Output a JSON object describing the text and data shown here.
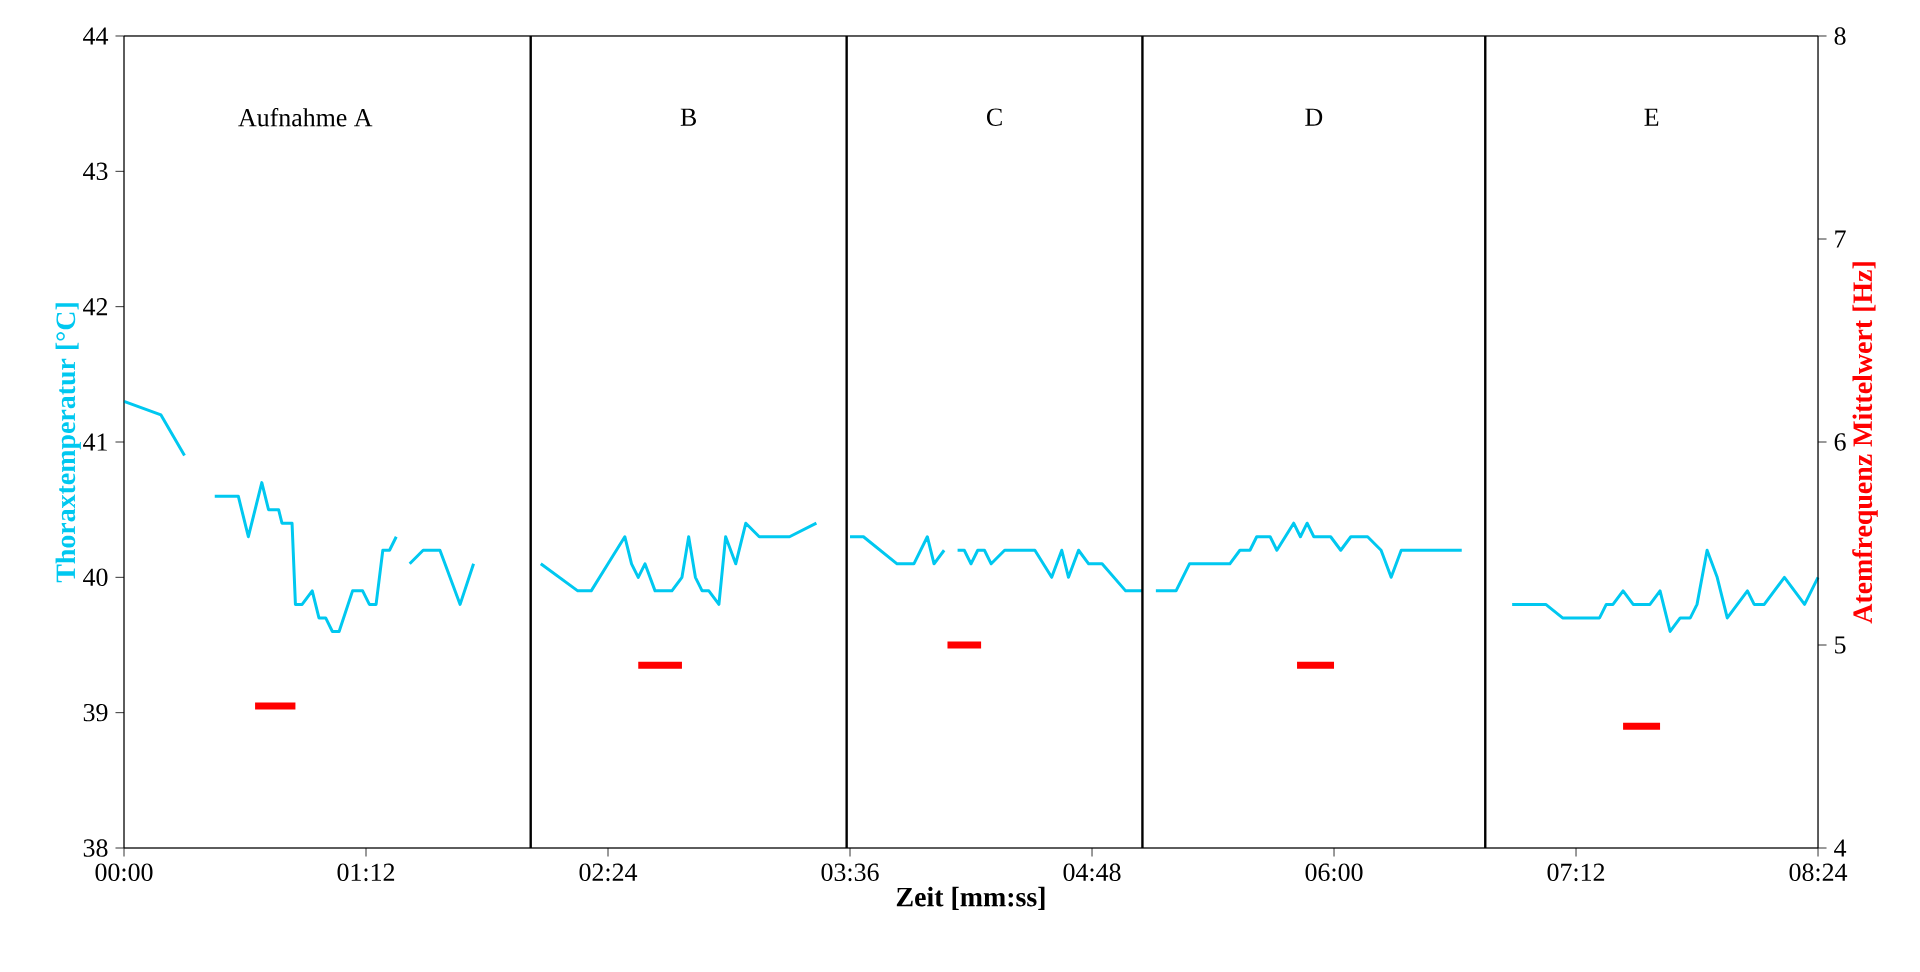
{
  "chart_data": {
    "type": "line",
    "xlabel": "Zeit [mm:ss]",
    "ylabel": "Thoraxtemperatur [°C]",
    "y2label": "Atemfrequenz Mittelwert [Hz]",
    "xlim": [
      0,
      504
    ],
    "xticks": [
      {
        "value": 0,
        "label": "00:00"
      },
      {
        "value": 72,
        "label": "01:12"
      },
      {
        "value": 144,
        "label": "02:24"
      },
      {
        "value": 216,
        "label": "03:36"
      },
      {
        "value": 288,
        "label": "04:48"
      },
      {
        "value": 360,
        "label": "06:00"
      },
      {
        "value": 432,
        "label": "07:12"
      },
      {
        "value": 504,
        "label": "08:24"
      }
    ],
    "ylim": [
      38,
      44
    ],
    "yticks": [
      38,
      39,
      40,
      41,
      42,
      43,
      44
    ],
    "y2lim": [
      4,
      8
    ],
    "y2ticks": [
      4,
      5,
      6,
      7,
      8
    ],
    "marker": "none",
    "line_style": "solid",
    "grid": false,
    "series": [
      {
        "color": "#00c8f0",
        "x": [
          0,
          11,
          18,
          19,
          27,
          34,
          37,
          41,
          43,
          46,
          47,
          50,
          51,
          53,
          56,
          58,
          60,
          62,
          64,
          68,
          71,
          73,
          75,
          77,
          79,
          81,
          82,
          85,
          89,
          94,
          100,
          104,
          110,
          124,
          135,
          139,
          144,
          149,
          151,
          153,
          155,
          158,
          163,
          166,
          168,
          170,
          172,
          174,
          177,
          179,
          182,
          185,
          189,
          198,
          206,
          210,
          216,
          220,
          230,
          235,
          239,
          241,
          244,
          246,
          248,
          250,
          252,
          254,
          256,
          258,
          262,
          271,
          276,
          279,
          281,
          284,
          287,
          291,
          298,
          303,
          305,
          307,
          313,
          317,
          329,
          332,
          335,
          337,
          341,
          343,
          348,
          350,
          352,
          354,
          359,
          362,
          365,
          370,
          374,
          377,
          380,
          398,
          405,
          413,
          423,
          428,
          439,
          441,
          443,
          446,
          449,
          454,
          457,
          460,
          463,
          466,
          468,
          471,
          474,
          477,
          483,
          485,
          488,
          494,
          500,
          504
        ],
        "values": [
          41.3,
          41.2,
          40.9,
          null,
          40.6,
          40.6,
          40.3,
          40.7,
          40.5,
          40.5,
          40.4,
          40.4,
          39.8,
          39.8,
          39.9,
          39.7,
          39.7,
          39.6,
          39.6,
          39.9,
          39.9,
          39.8,
          39.8,
          40.2,
          40.2,
          40.3,
          null,
          40.1,
          40.2,
          40.2,
          39.8,
          40.1,
          null,
          40.1,
          39.9,
          39.9,
          40.1,
          40.3,
          40.1,
          40.0,
          40.1,
          39.9,
          39.9,
          40.0,
          40.3,
          40.0,
          39.9,
          39.9,
          39.8,
          40.3,
          40.1,
          40.4,
          40.3,
          40.3,
          40.4,
          null,
          40.3,
          40.3,
          40.1,
          40.1,
          40.3,
          40.1,
          40.2,
          null,
          40.2,
          40.2,
          40.1,
          40.2,
          40.2,
          40.1,
          40.2,
          40.2,
          40.0,
          40.2,
          40.0,
          40.2,
          40.1,
          40.1,
          39.9,
          39.9,
          null,
          39.9,
          39.9,
          40.1,
          40.1,
          40.2,
          40.2,
          40.3,
          40.3,
          40.2,
          40.4,
          40.3,
          40.4,
          40.3,
          40.3,
          40.2,
          40.3,
          40.3,
          40.2,
          40.0,
          40.2,
          40.2,
          null,
          39.8,
          39.8,
          39.7,
          39.7,
          39.8,
          39.8,
          39.9,
          39.8,
          39.8,
          39.9,
          39.6,
          39.7,
          39.7,
          39.8,
          40.2,
          40.0,
          39.7,
          39.9,
          39.8,
          39.8,
          40.0,
          39.8,
          40.0
        ]
      },
      {
        "axis": "y2",
        "color": "#ff0000",
        "x": [
          39,
          51,
          52,
          153,
          166,
          167,
          245,
          255,
          256,
          349,
          360,
          361,
          446,
          457
        ],
        "values": [
          4.7,
          4.7,
          null,
          4.9,
          4.9,
          null,
          5.0,
          5.0,
          null,
          4.9,
          4.9,
          null,
          4.6,
          4.6
        ]
      }
    ],
    "ref_lines": [
      {
        "axis": "x",
        "value": 121,
        "color": "#000000"
      },
      {
        "axis": "x",
        "value": 215,
        "color": "#000000"
      },
      {
        "axis": "x",
        "value": 303,
        "color": "#000000"
      },
      {
        "axis": "x",
        "value": 405,
        "color": "#000000"
      }
    ],
    "annotations": [
      "Aufnahme A",
      "B",
      "C",
      "D",
      "E"
    ]
  }
}
